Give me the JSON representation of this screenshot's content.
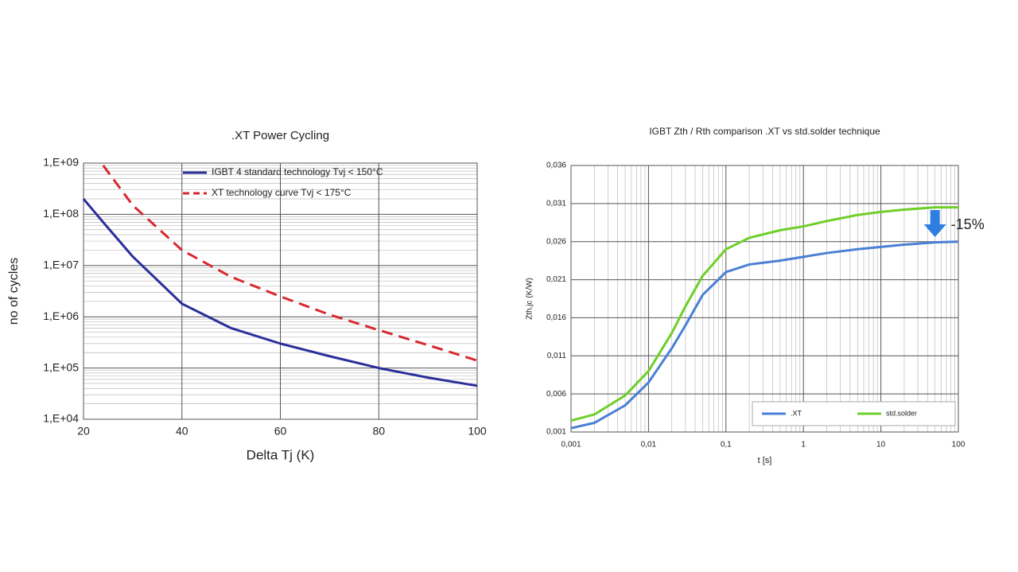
{
  "chart_data": [
    {
      "type": "line",
      "title": ".XT Power Cycling",
      "x_label": "Delta Tj (K)",
      "y_label": "no of cycles",
      "x": [
        20,
        24,
        30,
        40,
        50,
        60,
        70,
        80,
        90,
        100
      ],
      "series": [
        {
          "name": "IGBT 4 standard technology  Tvj < 150°C",
          "color": "#2b2f9a",
          "line_style": "solid",
          "values": [
            200000000,
            70000000,
            15000000,
            1800000,
            600000,
            300000,
            170000,
            100000,
            65000,
            45000
          ]
        },
        {
          "name": "XT technology curve Tvj  < 175°C",
          "color": "#d8282f",
          "line_style": "dashed",
          "values": [
            null,
            900000000,
            150000000,
            20000000,
            6000000,
            2500000,
            1100000,
            550000,
            280000,
            140000
          ]
        }
      ],
      "xlim": [
        20,
        100
      ],
      "xticks": [
        20,
        40,
        60,
        80,
        100
      ],
      "ylim": [
        10000,
        1000000000
      ],
      "ylog": true,
      "yticks": [
        {
          "value": 10000,
          "label": "1,E+04"
        },
        {
          "value": 100000,
          "label": "1,E+05"
        },
        {
          "value": 1000000,
          "label": "1,E+06"
        },
        {
          "value": 10000000,
          "label": "1,E+07"
        },
        {
          "value": 100000000,
          "label": "1,E+08"
        },
        {
          "value": 1000000000,
          "label": "1,E+09"
        }
      ],
      "grid": true,
      "legend": "top"
    },
    {
      "type": "line",
      "title": "IGBT Zth / Rth comparison .XT vs std.solder technique",
      "x_label": "t [s]",
      "y_label": "Zth,jc (K/W)",
      "annotation": "-15%",
      "x": [
        0.001,
        0.002,
        0.005,
        0.01,
        0.02,
        0.03,
        0.05,
        0.1,
        0.2,
        0.5,
        1,
        2,
        5,
        10,
        20,
        50,
        100
      ],
      "series": [
        {
          "name": ".XT",
          "color": "#4a7fd4",
          "line_style": "solid",
          "values": [
            0.0015,
            0.0022,
            0.0045,
            0.0075,
            0.012,
            0.015,
            0.019,
            0.022,
            0.023,
            0.0235,
            0.024,
            0.0245,
            0.025,
            0.0253,
            0.0256,
            0.0259,
            0.026
          ]
        },
        {
          "name": "std.solder",
          "color": "#6fcf2a",
          "line_style": "solid",
          "values": [
            0.0025,
            0.0033,
            0.0058,
            0.009,
            0.014,
            0.0175,
            0.0215,
            0.025,
            0.0265,
            0.0275,
            0.028,
            0.0287,
            0.0295,
            0.0299,
            0.0302,
            0.0305,
            0.0305
          ]
        }
      ],
      "xlim": [
        0.001,
        100
      ],
      "xlog": true,
      "xticks": [
        {
          "value": 0.001,
          "label": "0,001"
        },
        {
          "value": 0.01,
          "label": "0,01"
        },
        {
          "value": 0.1,
          "label": "0,1"
        },
        1,
        10,
        100
      ],
      "ylim": [
        0.001,
        0.036
      ],
      "yticks": [
        {
          "value": 0.001,
          "label": "0,001"
        },
        {
          "value": 0.006,
          "label": "0,006"
        },
        {
          "value": 0.011,
          "label": "0,011"
        },
        {
          "value": 0.016,
          "label": "0,016"
        },
        {
          "value": 0.021,
          "label": "0,021"
        },
        {
          "value": 0.026,
          "label": "0,026"
        },
        {
          "value": 0.031,
          "label": "0,031"
        },
        {
          "value": 0.036,
          "label": "0,036"
        }
      ],
      "grid": true,
      "legend": "bottom-right"
    }
  ]
}
